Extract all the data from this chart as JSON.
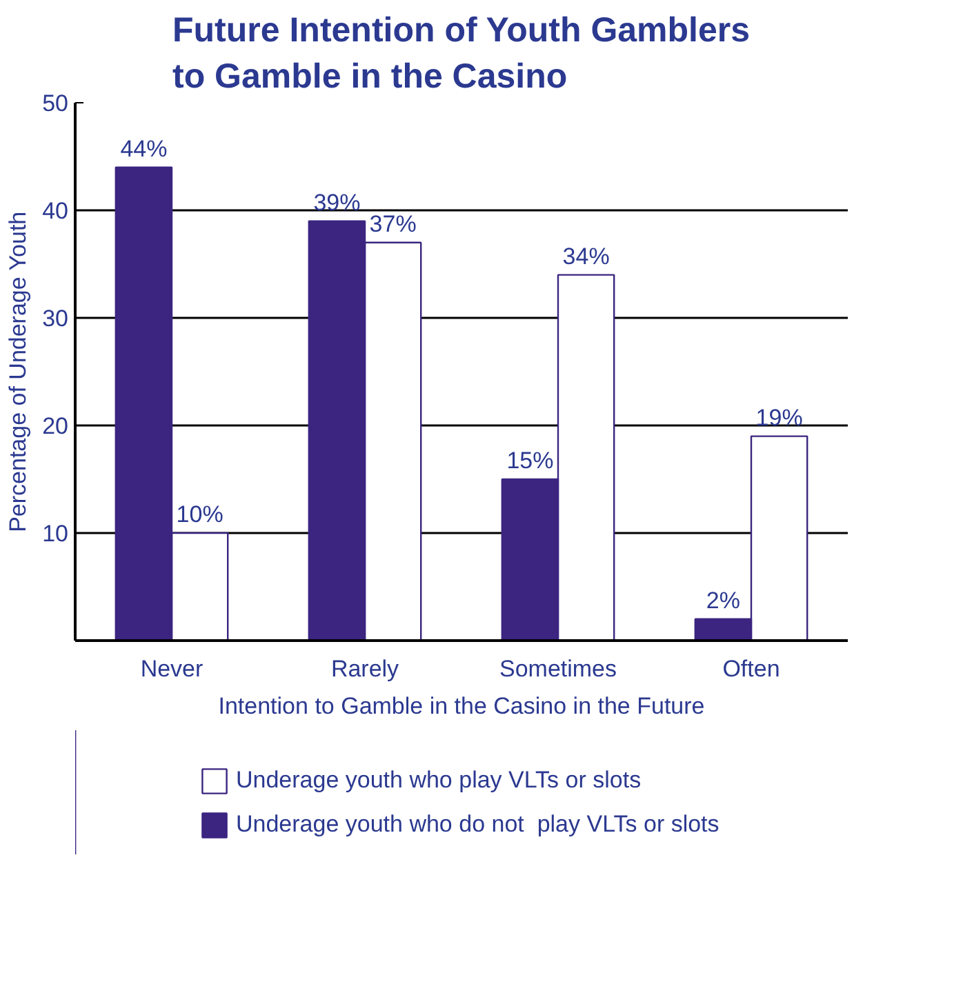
{
  "chart_data": {
    "type": "bar",
    "title": "Future Intention of Youth Gamblers\nto Gamble in the Casino",
    "xlabel": "Intention to Gamble in the Casino in the Future",
    "ylabel": "Percentage of Underage Youth",
    "categories": [
      "Never",
      "Rarely",
      "Sometimes",
      "Often"
    ],
    "series": [
      {
        "name": "Underage youth who play VLTs or slots",
        "color": "#ffffff",
        "values": [
          10,
          37,
          34,
          19
        ],
        "value_labels": [
          "10%",
          "37%",
          "34%",
          "19%"
        ]
      },
      {
        "name": "Underage youth who do not  play VLTs or slots",
        "color": "#3b2580",
        "values": [
          44,
          39,
          15,
          2
        ],
        "value_labels": [
          "44%",
          "39%",
          "15%",
          "2%"
        ]
      }
    ],
    "ylim": [
      0,
      50
    ],
    "yticks": [
      10,
      20,
      30,
      40,
      50
    ],
    "grid": "y",
    "legend": "bottom"
  }
}
